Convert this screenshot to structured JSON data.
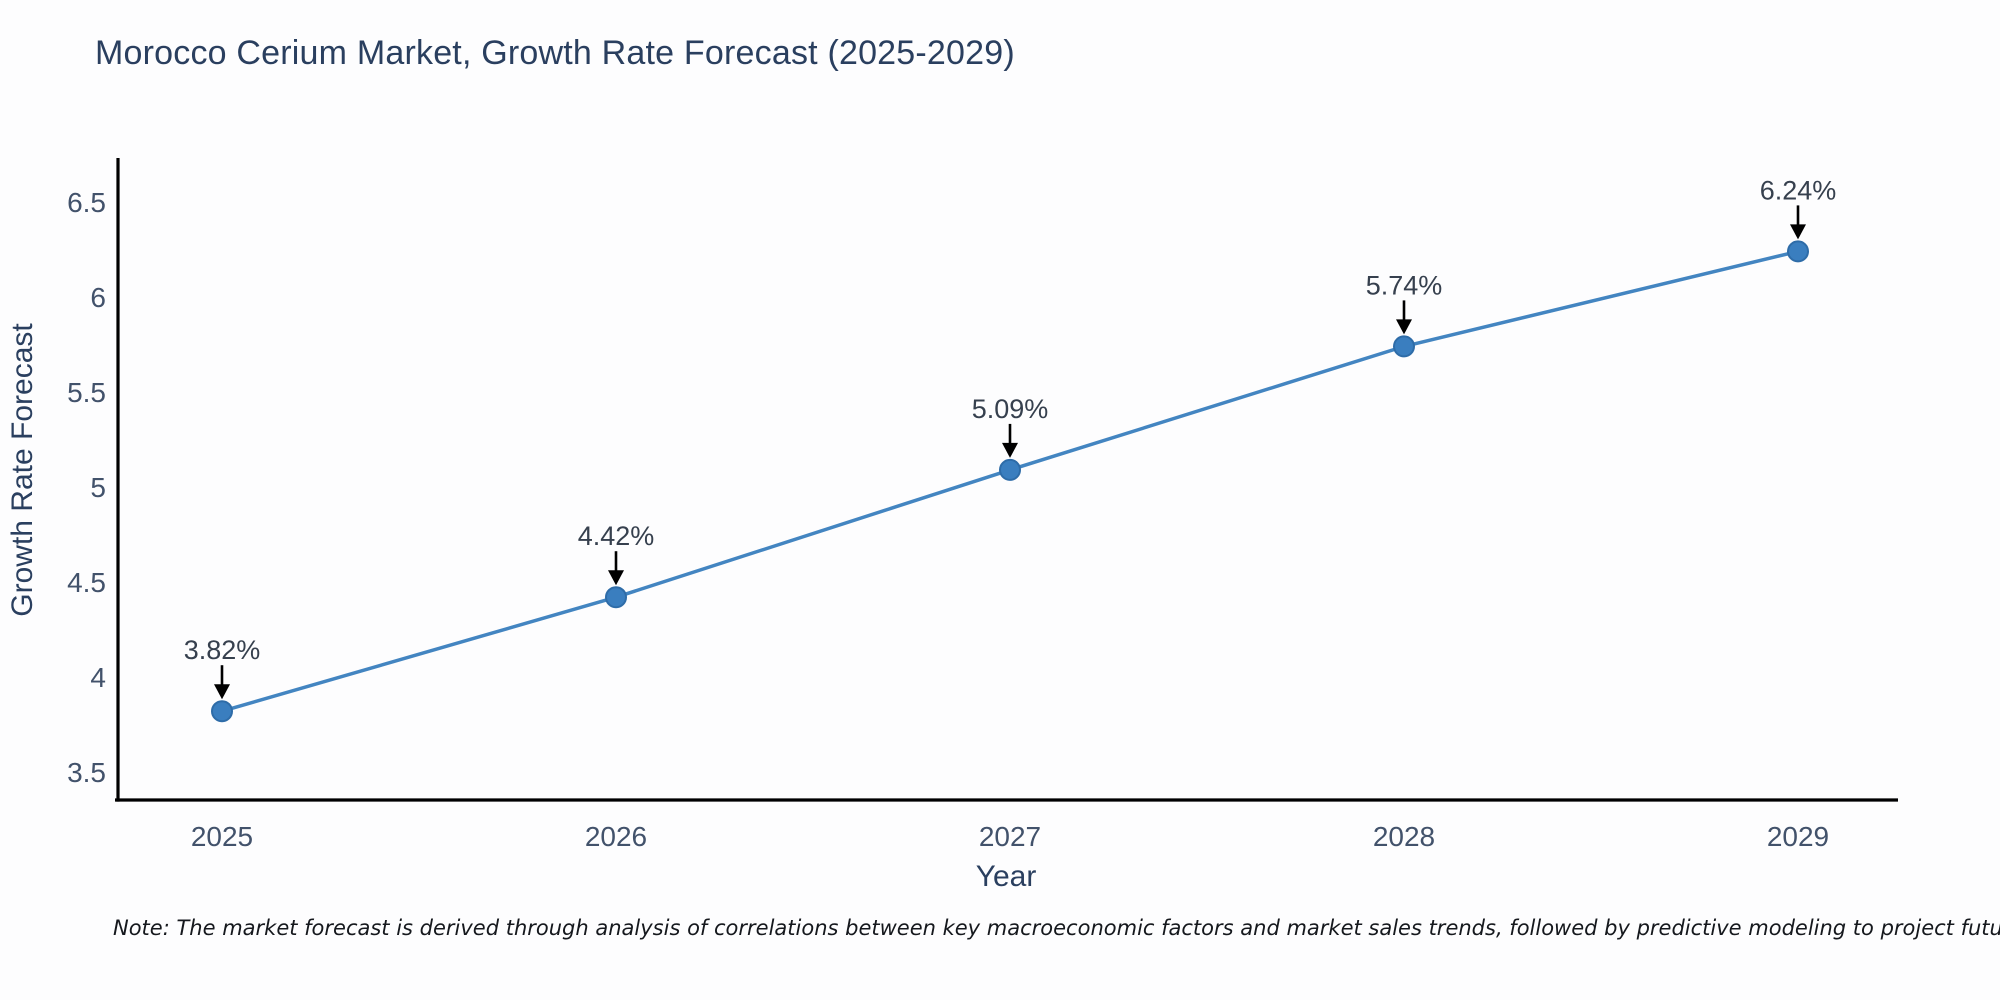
{
  "page": {
    "note": "Note: The market forecast is derived through analysis of correlations between key macroeconomic factors and market sales trends, followed by predictive modeling to project future sales"
  },
  "chart_data": {
    "type": "line",
    "title": "Morocco Cerium Market, Growth Rate Forecast (2025-2029)",
    "xlabel": "Year",
    "ylabel": "Growth Rate Forecast",
    "x": [
      2025,
      2026,
      2027,
      2028,
      2029
    ],
    "series": [
      {
        "name": "Growth Rate Forecast",
        "values": [
          3.82,
          4.42,
          5.09,
          5.74,
          6.24
        ],
        "point_labels": [
          "3.82%",
          "4.42%",
          "5.09%",
          "5.74%",
          "6.24%"
        ]
      }
    ],
    "xticks": [
      "2025",
      "2026",
      "2027",
      "2028",
      "2029"
    ],
    "yticks": [
      "3.5",
      "4",
      "4.5",
      "5",
      "5.5",
      "6",
      "6.5"
    ],
    "ytick_values": [
      3.5,
      4,
      4.5,
      5,
      5.5,
      6,
      6.5
    ],
    "ylim": [
      3.35,
      6.73
    ],
    "grid": false,
    "legend": false,
    "annotations_have_down_arrows": true,
    "colors": {
      "line": "#4385c1",
      "marker_fill": "#3a7ebf",
      "marker_edge": "#2e6ca8",
      "axis_line": "#000000",
      "tick_text": "#42526b",
      "axis_title_text": "#2a3f5f",
      "title_text": "#2a3f5f",
      "annotation_text": "#36404e",
      "arrow": "#000000",
      "note_text": "#15181d"
    }
  }
}
